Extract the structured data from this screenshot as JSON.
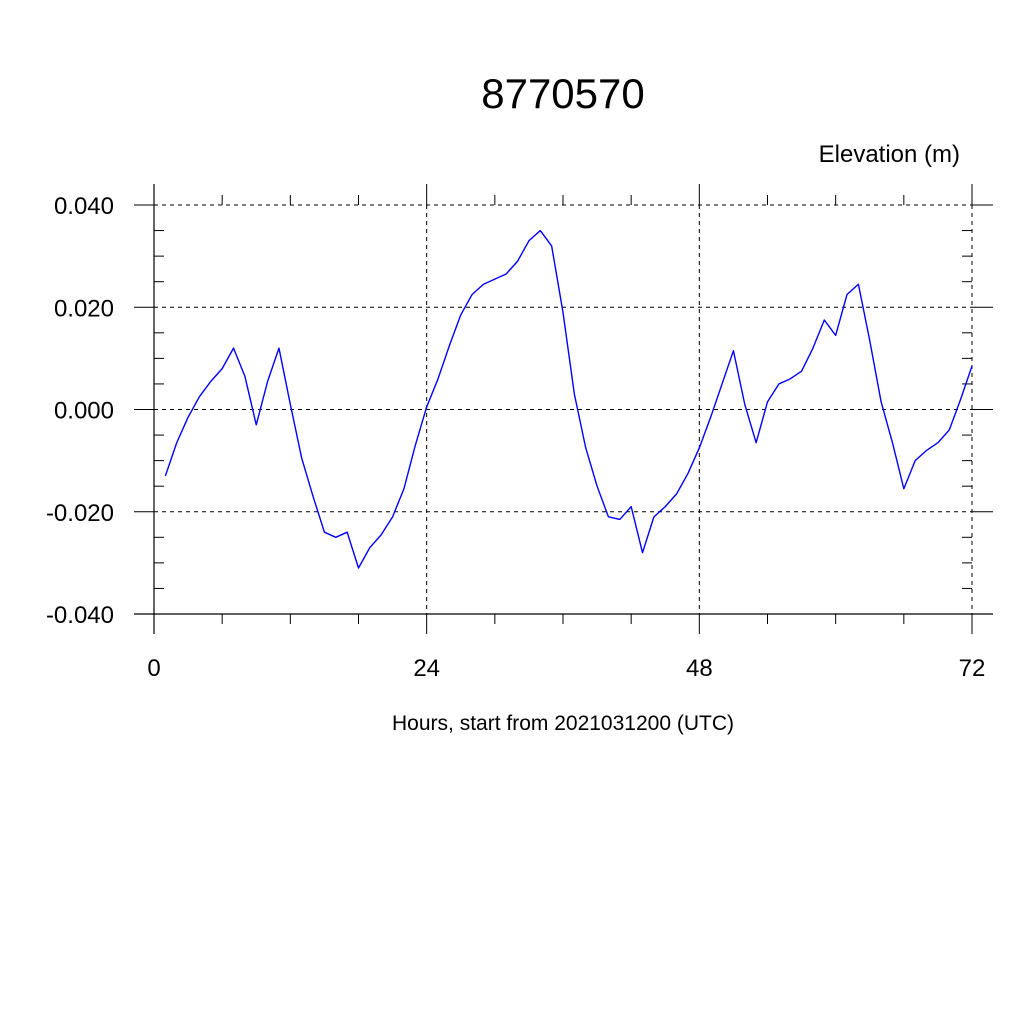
{
  "chart_data": {
    "type": "line",
    "title": "8770570",
    "ylabel": "Elevation (m)",
    "xlabel": "Hours, start from 2021031200 (UTC)",
    "xlim": [
      0,
      72
    ],
    "ylim": [
      -0.04,
      0.04
    ],
    "x_ticks": [
      0,
      24,
      48,
      72
    ],
    "x_tick_labels": [
      "0",
      "24",
      "48",
      "72"
    ],
    "y_ticks": [
      -0.04,
      -0.02,
      0.0,
      0.02,
      0.04
    ],
    "y_tick_labels": [
      "-0.040",
      "-0.020",
      "0.000",
      "0.020",
      "0.040"
    ],
    "grid": true,
    "line_color": "#0000ff",
    "series": [
      {
        "x": [
          1,
          2,
          3,
          4,
          5,
          6,
          7,
          8,
          9,
          10,
          11,
          12,
          13,
          14,
          15,
          16,
          17,
          18,
          19,
          20,
          21,
          22,
          23,
          24,
          25,
          26,
          27,
          28,
          29,
          30,
          31,
          32,
          33,
          34,
          35,
          36,
          37,
          38,
          39,
          40,
          41,
          42,
          43,
          44,
          45,
          46,
          47,
          48,
          49,
          50,
          51,
          52,
          53,
          54,
          55,
          56,
          57,
          58,
          59,
          60,
          61,
          62,
          63,
          64,
          65,
          66,
          67,
          68,
          69,
          70,
          71,
          72
        ],
        "values": [
          -0.013,
          -0.0065,
          -0.0015,
          0.0025,
          0.0055,
          0.008,
          0.012,
          0.0065,
          -0.003,
          0.0055,
          0.012,
          0.001,
          -0.0095,
          -0.017,
          -0.024,
          -0.025,
          -0.024,
          -0.031,
          -0.027,
          -0.0245,
          -0.021,
          -0.0155,
          -0.007,
          0.0005,
          0.006,
          0.0125,
          0.0185,
          0.0225,
          0.0245,
          0.0255,
          0.0265,
          0.029,
          0.033,
          0.035,
          0.032,
          0.019,
          0.003,
          -0.0075,
          -0.015,
          -0.021,
          -0.0215,
          -0.019,
          -0.028,
          -0.021,
          -0.019,
          -0.0165,
          -0.0125,
          -0.0075,
          -0.0015,
          0.005,
          0.0115,
          0.001,
          -0.0065,
          0.0015,
          0.005,
          0.006,
          0.0075,
          0.012,
          0.0175,
          0.0145,
          0.0225,
          0.0245,
          0.0135,
          0.0015,
          -0.0065,
          -0.0155,
          -0.01,
          -0.008,
          -0.0065,
          -0.004,
          0.002,
          0.0085
        ]
      }
    ]
  }
}
